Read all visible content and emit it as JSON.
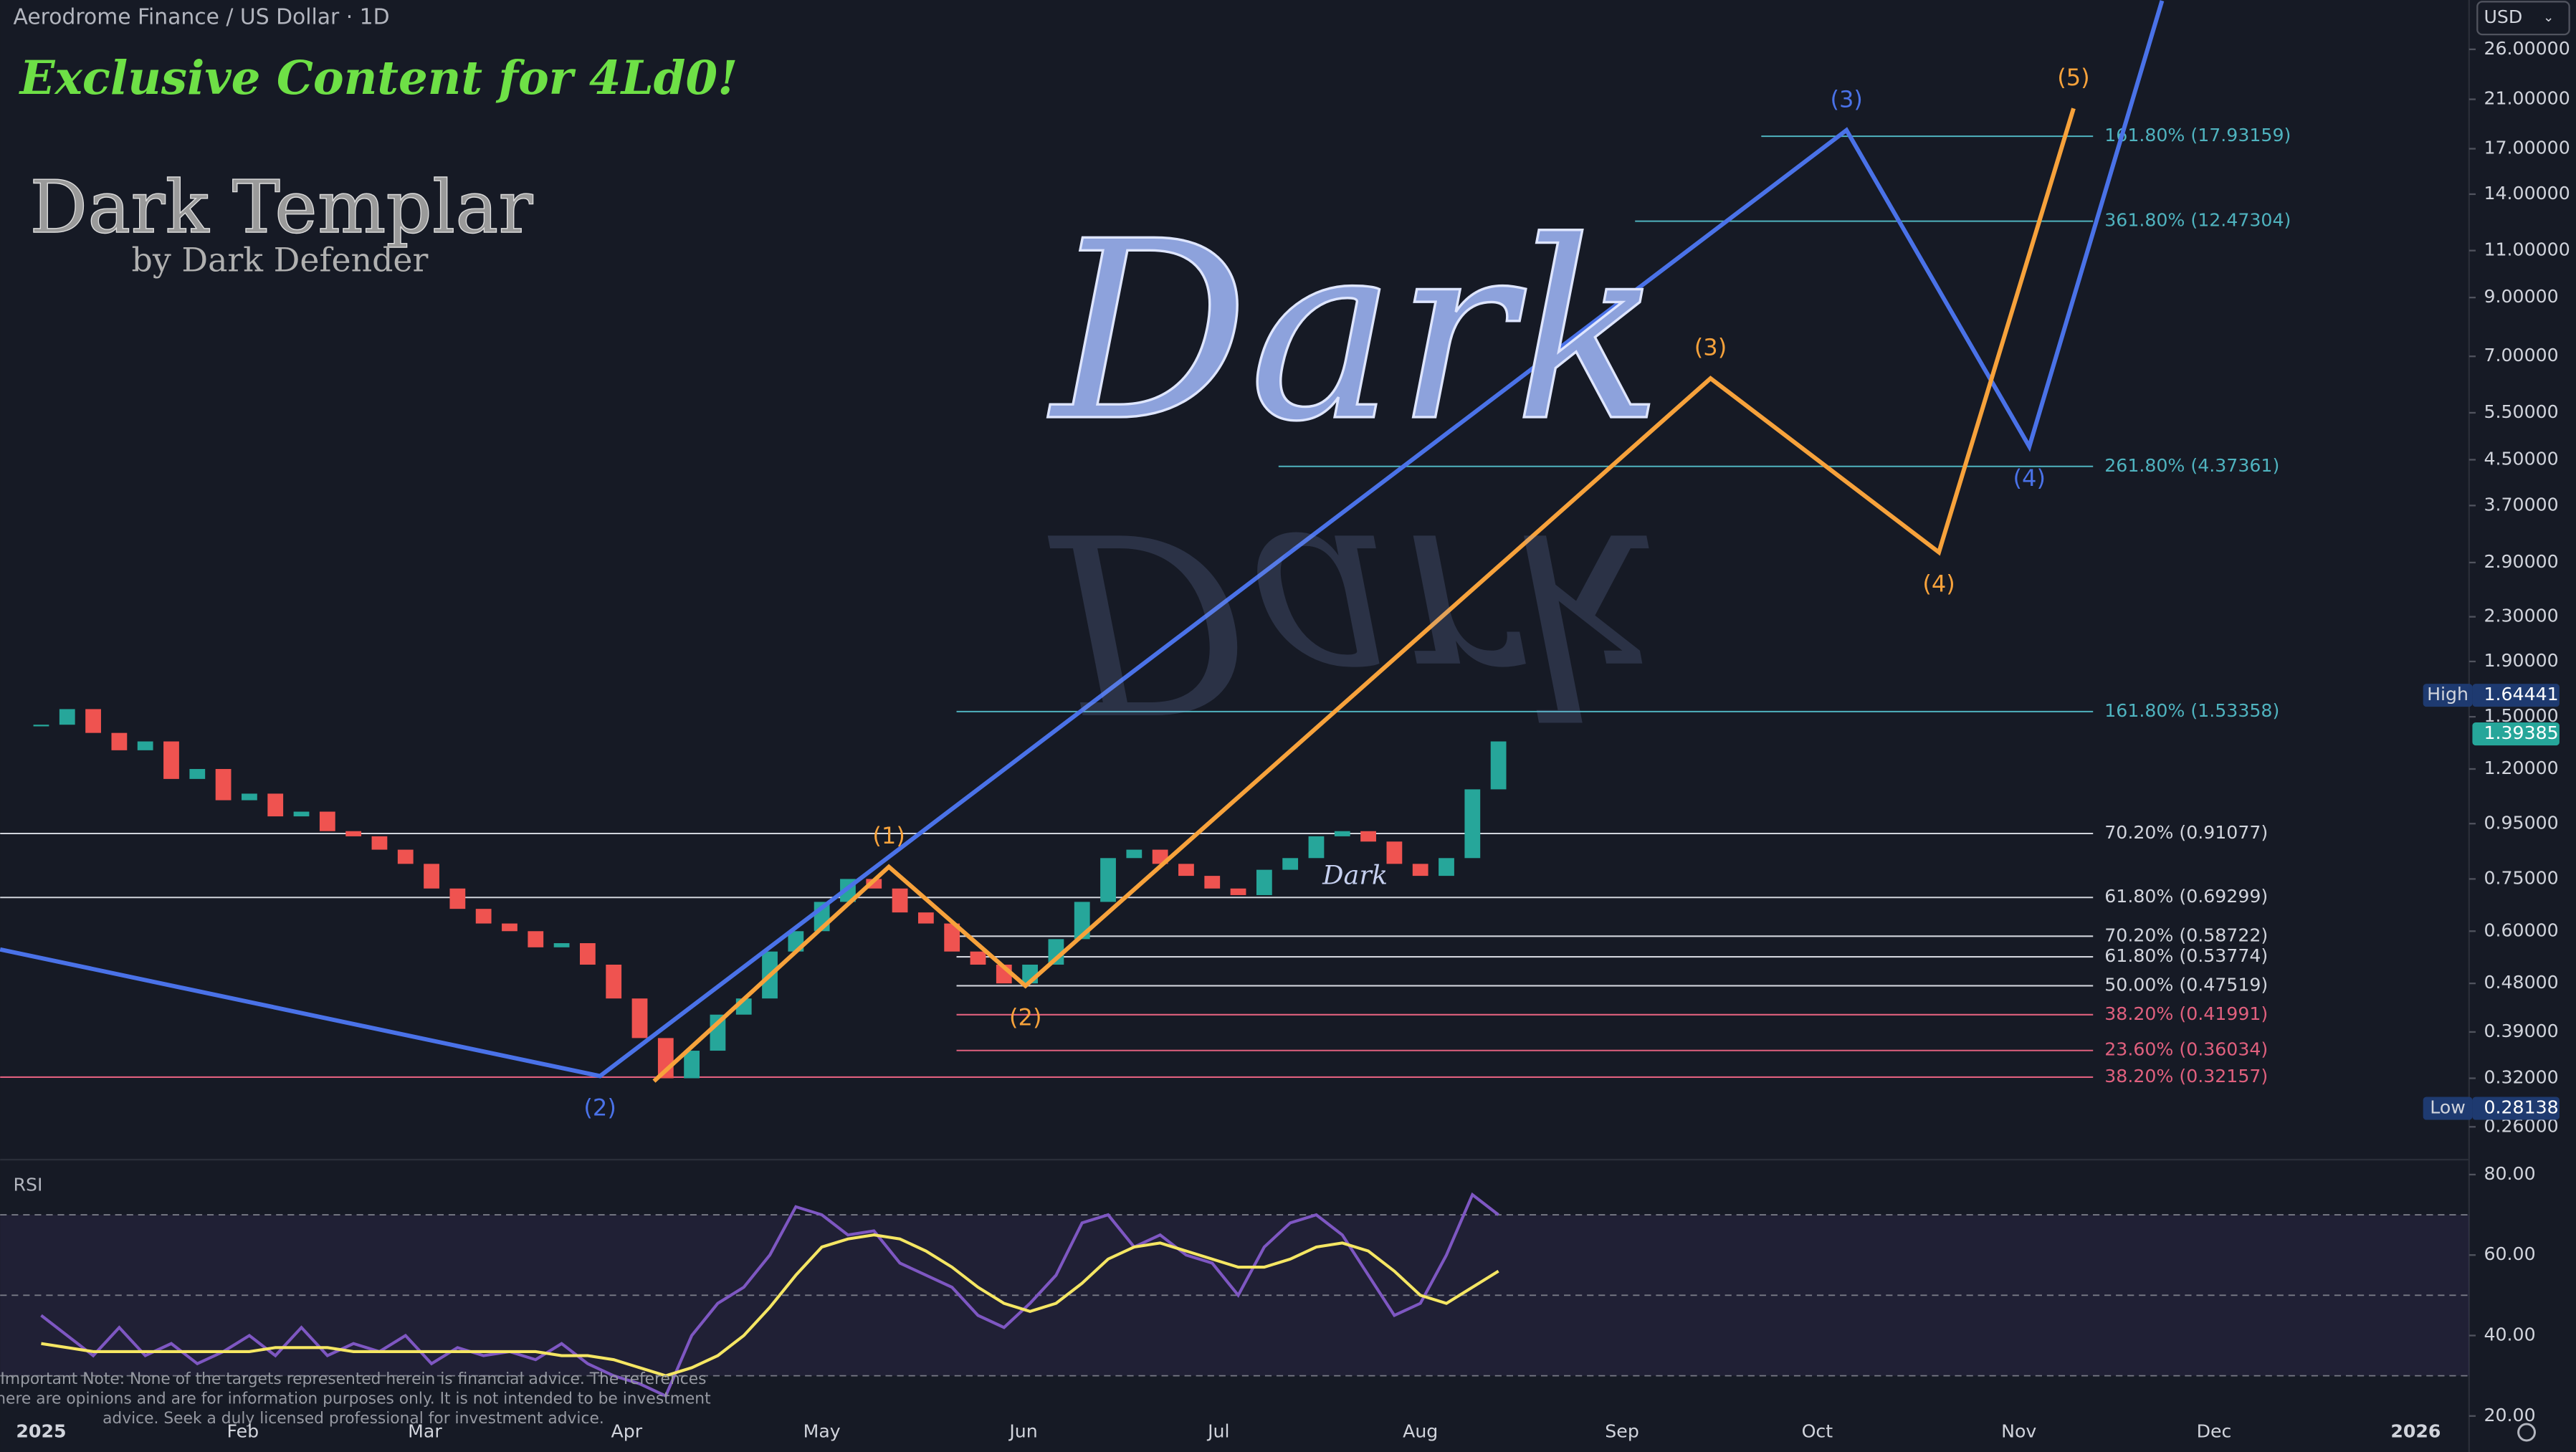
{
  "chart_data": [
    {
      "type": "candlestick",
      "title": "Aerodrome Finance / US Dollar · 1D",
      "currency": "USD",
      "log_scale": true,
      "watermarks": [
        "Exclusive Content for 4Ld0!",
        "Dark Templar",
        "by Dark Defender",
        "Dark",
        "Dark"
      ],
      "note": [
        "Important Note: None of the targets represented herein is financial advice. The references",
        "here are opinions and are for information purposes only. It is not intended to be investment",
        "advice. Seek a duly licensed professional for investment advice."
      ],
      "x": [
        0,
        4,
        8,
        12,
        16,
        20,
        24,
        28,
        32,
        36,
        40,
        44,
        48,
        52,
        56,
        60,
        64,
        68,
        72,
        76,
        80,
        84,
        88,
        92,
        96,
        100,
        104,
        108,
        112,
        116,
        120,
        124,
        128,
        132,
        136,
        140,
        144,
        148,
        152,
        156,
        160,
        164,
        168,
        172,
        176,
        180,
        184,
        188,
        192,
        196,
        200,
        204,
        208,
        212,
        216,
        220,
        224
      ],
      "close": [
        1.45,
        1.55,
        1.4,
        1.3,
        1.35,
        1.15,
        1.2,
        1.05,
        1.08,
        0.98,
        1.0,
        0.92,
        0.9,
        0.85,
        0.8,
        0.72,
        0.66,
        0.62,
        0.6,
        0.56,
        0.57,
        0.52,
        0.45,
        0.38,
        0.32,
        0.36,
        0.42,
        0.45,
        0.55,
        0.6,
        0.68,
        0.75,
        0.72,
        0.65,
        0.62,
        0.55,
        0.52,
        0.48,
        0.52,
        0.58,
        0.68,
        0.82,
        0.85,
        0.8,
        0.76,
        0.72,
        0.7,
        0.78,
        0.82,
        0.9,
        0.92,
        0.88,
        0.8,
        0.76,
        0.82,
        1.1,
        1.35
      ],
      "up_color": "#26a69a",
      "down_color": "#ef5350",
      "xlim": [
        -6.31,
        373.2
      ],
      "xticks": [
        {
          "value": 0,
          "label": "2025"
        },
        {
          "value": 31,
          "label": "Feb"
        },
        {
          "value": 59,
          "label": "Mar"
        },
        {
          "value": 90,
          "label": "Apr"
        },
        {
          "value": 120,
          "label": "May"
        },
        {
          "value": 151,
          "label": "Jun"
        },
        {
          "value": 181,
          "label": "Jul"
        },
        {
          "value": 212,
          "label": "Aug"
        },
        {
          "value": 243,
          "label": "Sep"
        },
        {
          "value": 273,
          "label": "Oct"
        },
        {
          "value": 304,
          "label": "Nov"
        },
        {
          "value": 334,
          "label": "Dec"
        },
        {
          "value": 365,
          "label": "2026"
        }
      ],
      "ylim": [
        0.226,
        32.1
      ],
      "yticks": [
        {
          "value": 26,
          "label": "26.00000"
        },
        {
          "value": 21,
          "label": "21.00000"
        },
        {
          "value": 17,
          "label": "17.00000"
        },
        {
          "value": 14,
          "label": "14.00000"
        },
        {
          "value": 11,
          "label": "11.00000"
        },
        {
          "value": 9,
          "label": "9.00000"
        },
        {
          "value": 7,
          "label": "7.00000"
        },
        {
          "value": 5.5,
          "label": "5.50000"
        },
        {
          "value": 4.5,
          "label": "4.50000"
        },
        {
          "value": 3.7,
          "label": "3.70000"
        },
        {
          "value": 2.9,
          "label": "2.90000"
        },
        {
          "value": 2.3,
          "label": "2.30000"
        },
        {
          "value": 1.9,
          "label": "1.90000"
        },
        {
          "value": 1.5,
          "label": "1.50000"
        },
        {
          "value": 1.2,
          "label": "1.20000"
        },
        {
          "value": 0.95,
          "label": "0.95000"
        },
        {
          "value": 0.75,
          "label": "0.75000"
        },
        {
          "value": 0.6,
          "label": "0.60000"
        },
        {
          "value": 0.48,
          "label": "0.48000"
        },
        {
          "value": 0.39,
          "label": "0.39000"
        },
        {
          "value": 0.32,
          "label": "0.32000"
        },
        {
          "value": 0.26,
          "label": "0.26000"
        }
      ],
      "waves": [
        {
          "color": "#4a72e8",
          "x": [
            -6.31,
            85.9,
            277.5,
            305.6,
            326
          ],
          "values": [
            0.555,
            0.323,
            18.4,
            4.76,
            32
          ],
          "labels": [
            null,
            "(2)",
            "(3)",
            "(4)",
            null
          ]
        },
        {
          "color": "#f7a23b",
          "x": [
            94.2,
            130.3,
            151.3,
            256.6,
            291.7,
            312.4
          ],
          "values": [
            0.316,
            0.79,
            0.475,
            6.37,
            3.03,
            20.2
          ],
          "labels": [
            null,
            "(1)",
            "(2)",
            "(3)",
            "(4)",
            "(5)"
          ]
        }
      ],
      "fib_end": 315.4,
      "fib_levels": [
        {
          "value": 17.93159,
          "label": "161.80% (17.93159)",
          "color": "#4fb3bf",
          "from": 264.4
        },
        {
          "value": 12.47304,
          "label": "361.80% (12.47304)",
          "color": "#4fb3bf",
          "from": 245
        },
        {
          "value": 4.37361,
          "label": "261.80% (4.37361)",
          "color": "#4fb3bf",
          "from": 190.2
        },
        {
          "value": 1.53358,
          "label": "161.80% (1.53358)",
          "color": "#4fb3bf",
          "from": 140.7
        },
        {
          "value": 0.91077,
          "label": "70.20% (0.91077)",
          "color": "#d1d4dc",
          "from": -6.31
        },
        {
          "value": 0.69299,
          "label": "61.80% (0.69299)",
          "color": "#d1d4dc",
          "from": -6.31
        },
        {
          "value": 0.58722,
          "label": "70.20% (0.58722)",
          "color": "#d1d4dc",
          "from": 140.7
        },
        {
          "value": 0.53774,
          "label": "61.80% (0.53774)",
          "color": "#d1d4dc",
          "from": 140.7
        },
        {
          "value": 0.47519,
          "label": "50.00% (0.47519)",
          "color": "#d1d4dc",
          "from": 140.7
        },
        {
          "value": 0.41991,
          "label": "38.20% (0.41991)",
          "color": "#e0607e",
          "from": 140.7
        },
        {
          "value": 0.36034,
          "label": "23.60% (0.36034)",
          "color": "#e0607e",
          "from": 140.7
        },
        {
          "value": 0.32157,
          "label": "38.20% (0.32157)",
          "color": "#e0607e",
          "from": -6.31
        }
      ],
      "price_tags": [
        {
          "label": "High",
          "value": 1.64441,
          "color": "#1e3a70"
        },
        {
          "value": 1.39385,
          "color": "#26a69a"
        },
        {
          "label": "Low",
          "value": 0.28138,
          "color": "#1e3a70"
        }
      ]
    },
    {
      "type": "line",
      "title": "RSI",
      "x": [
        0,
        4,
        8,
        12,
        16,
        20,
        24,
        28,
        32,
        36,
        40,
        44,
        48,
        52,
        56,
        60,
        64,
        68,
        72,
        76,
        80,
        84,
        88,
        92,
        96,
        100,
        104,
        108,
        112,
        116,
        120,
        124,
        128,
        132,
        136,
        140,
        144,
        148,
        152,
        156,
        160,
        164,
        168,
        172,
        176,
        180,
        184,
        188,
        192,
        196,
        200,
        204,
        208,
        212,
        216,
        220,
        224
      ],
      "xlim": [
        -6.31,
        373.2
      ],
      "series": [
        {
          "color": "#7e57c2",
          "values": [
            45,
            40,
            35,
            42,
            35,
            38,
            33,
            36,
            40,
            35,
            42,
            35,
            38,
            36,
            40,
            33,
            37,
            35,
            36,
            34,
            38,
            33,
            30,
            28,
            25,
            40,
            48,
            52,
            60,
            72,
            70,
            65,
            66,
            58,
            55,
            52,
            45,
            42,
            48,
            55,
            68,
            70,
            62,
            65,
            60,
            58,
            50,
            62,
            68,
            70,
            65,
            55,
            45,
            48,
            60,
            75,
            70
          ]
        },
        {
          "color": "#f5e663",
          "values": [
            38,
            37,
            36,
            36,
            36,
            36,
            36,
            36,
            36,
            37,
            37,
            37,
            36,
            36,
            36,
            36,
            36,
            36,
            36,
            36,
            35,
            35,
            34,
            32,
            30,
            32,
            35,
            40,
            47,
            55,
            62,
            64,
            65,
            64,
            61,
            57,
            52,
            48,
            46,
            48,
            53,
            59,
            62,
            63,
            61,
            59,
            57,
            57,
            59,
            62,
            63,
            61,
            56,
            50,
            48,
            52,
            56
          ]
        }
      ],
      "ylim": [
        18.4,
        82.9
      ],
      "yticks": [
        {
          "value": 80,
          "label": "80.00"
        },
        {
          "value": 60,
          "label": "60.00"
        },
        {
          "value": 40,
          "label": "40.00"
        },
        {
          "value": 20,
          "label": "20.00"
        }
      ],
      "bands": [
        70,
        50,
        30
      ],
      "band_color": "#7e57c2"
    }
  ]
}
